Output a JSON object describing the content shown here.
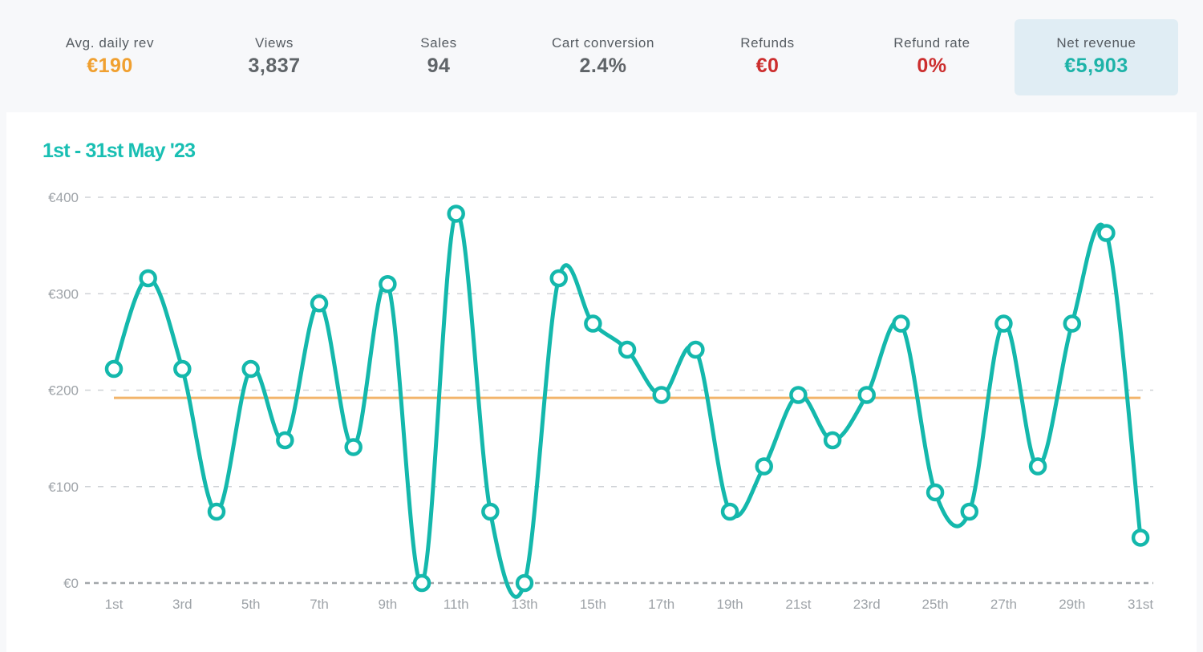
{
  "stats": [
    {
      "label": "Avg. daily rev",
      "value": "€190",
      "color": "#f0a030"
    },
    {
      "label": "Views",
      "value": "3,837",
      "color": "#5f6468"
    },
    {
      "label": "Sales",
      "value": "94",
      "color": "#5f6468"
    },
    {
      "label": "Cart conversion",
      "value": "2.4%",
      "color": "#5f6468"
    },
    {
      "label": "Refunds",
      "value": "€0",
      "color": "#cc2e2e"
    },
    {
      "label": "Refund rate",
      "value": "0%",
      "color": "#cc2e2e"
    },
    {
      "label": "Net revenue",
      "value": "€5,903",
      "color": "#1db3a8",
      "active": true
    }
  ],
  "chart_data": {
    "type": "line",
    "title": "1st - 31st May '23",
    "xlabel": "",
    "ylabel": "",
    "x": [
      "1st",
      "2nd",
      "3rd",
      "4th",
      "5th",
      "6th",
      "7th",
      "8th",
      "9th",
      "10th",
      "11th",
      "12th",
      "13th",
      "14th",
      "15th",
      "16th",
      "17th",
      "18th",
      "19th",
      "20th",
      "21st",
      "22nd",
      "23rd",
      "24th",
      "25th",
      "26th",
      "27th",
      "28th",
      "29th",
      "30th",
      "31st"
    ],
    "x_tick_labels": [
      "1st",
      "3rd",
      "5th",
      "7th",
      "9th",
      "11th",
      "13th",
      "15th",
      "17th",
      "19th",
      "21st",
      "23rd",
      "25th",
      "27th",
      "29th",
      "31st"
    ],
    "series": [
      {
        "values": [
          222,
          316,
          222,
          74,
          222,
          148,
          290,
          141,
          310,
          0,
          383,
          74,
          0,
          316,
          269,
          242,
          195,
          242,
          74,
          121,
          195,
          148,
          195,
          269,
          94,
          74,
          269,
          121,
          269,
          363,
          47
        ]
      }
    ],
    "reference_line": {
      "value": 192
    },
    "y_tick_labels": [
      "€0",
      "€100",
      "€200",
      "€300",
      "€400"
    ],
    "y_ticks": [
      0,
      100,
      200,
      300,
      400
    ],
    "ylim": [
      0,
      400
    ],
    "grid": true,
    "colors": {
      "line": "#14b8ac",
      "reference": "#f2b46a",
      "title": "#19bfb3",
      "grid": "#cfd2d6",
      "baseline": "#a2a6aa"
    }
  }
}
